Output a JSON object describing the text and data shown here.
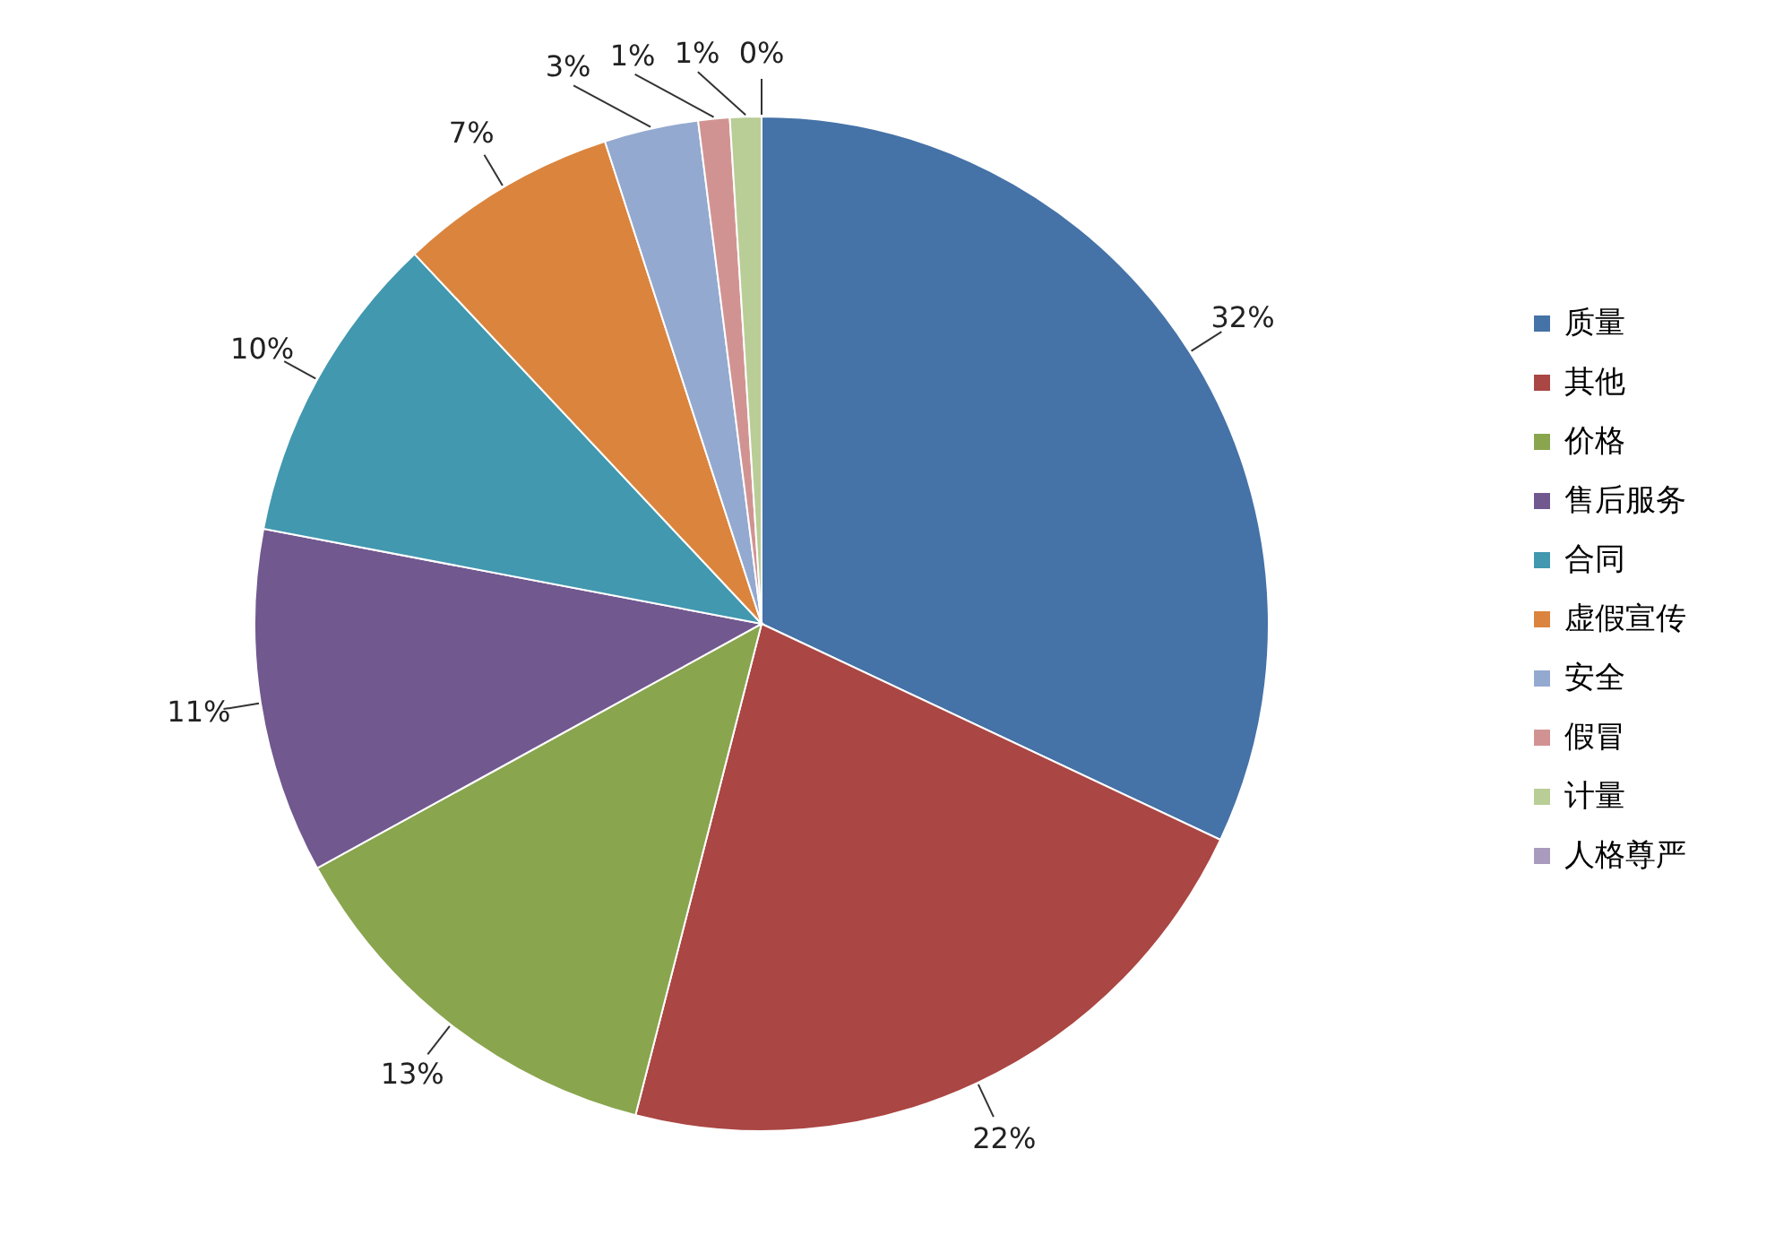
{
  "chart_data": {
    "type": "pie",
    "categories": [
      "质量",
      "其他",
      "价格",
      "售后服务",
      "合同",
      "虚假宣传",
      "安全",
      "假冒",
      "计量",
      "人格尊严"
    ],
    "values": [
      32,
      22,
      13,
      11,
      10,
      7,
      3,
      1,
      1,
      0
    ],
    "value_labels": [
      "32%",
      "22%",
      "13%",
      "11%",
      "10%",
      "7%",
      "3%",
      "1%",
      "1%",
      "0%"
    ],
    "colors": [
      "#4572a7",
      "#aa4643",
      "#89a54e",
      "#71588f",
      "#4198af",
      "#db843d",
      "#93a9cf",
      "#d19392",
      "#b9cd96",
      "#a99bbd"
    ],
    "legend": "right"
  }
}
